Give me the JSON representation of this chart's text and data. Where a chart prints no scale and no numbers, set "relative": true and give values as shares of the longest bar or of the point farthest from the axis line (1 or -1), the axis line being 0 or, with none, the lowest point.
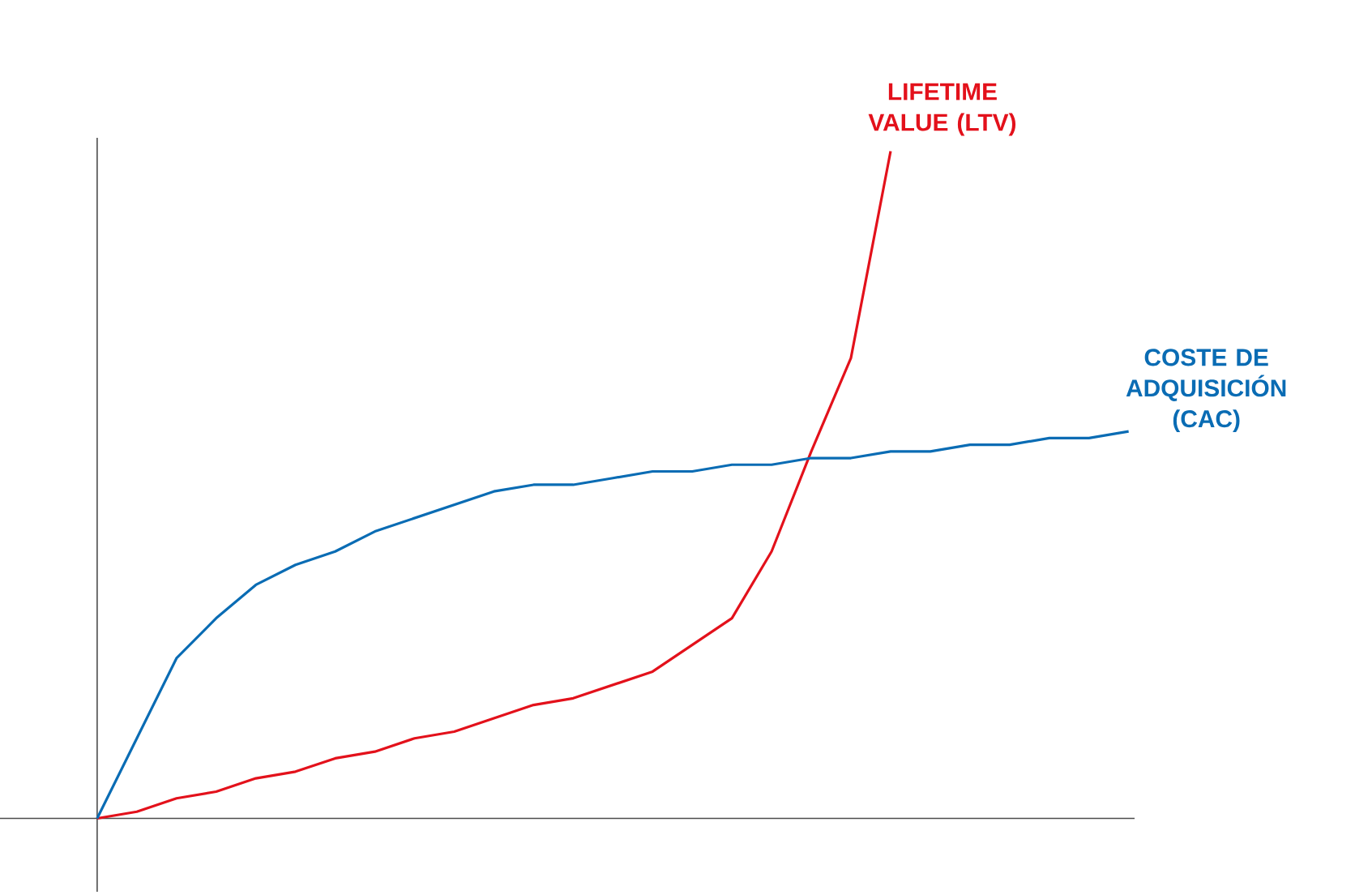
{
  "chart_data": {
    "type": "line",
    "relative": true,
    "categories": [
      null,
      null,
      null,
      null,
      null,
      null,
      null,
      null,
      null,
      null,
      null,
      null,
      null,
      null,
      null,
      null,
      null,
      null,
      null,
      null,
      null,
      null,
      null,
      null,
      null,
      null,
      null
    ],
    "series": [
      {
        "name": "LIFETIME VALUE (LTV)",
        "color": "#e3111b",
        "values": [
          0,
          0.01,
          0.03,
          0.04,
          0.06,
          0.07,
          0.09,
          0.1,
          0.12,
          0.13,
          0.15,
          0.17,
          0.18,
          0.2,
          0.22,
          0.26,
          0.3,
          0.4,
          0.55,
          0.69,
          1,
          null,
          null,
          null,
          null,
          null,
          null
        ]
      },
      {
        "name": "COSTE DE ADQUISICIÓN (CAC)",
        "color": "#0a6cb4",
        "values": [
          0,
          0.12,
          0.24,
          0.3,
          0.35,
          0.38,
          0.4,
          0.43,
          0.45,
          0.47,
          0.49,
          0.5,
          0.5,
          0.51,
          0.52,
          0.52,
          0.53,
          0.53,
          0.54,
          0.54,
          0.55,
          0.55,
          0.56,
          0.56,
          0.57,
          0.57,
          0.58
        ]
      }
    ]
  }
}
